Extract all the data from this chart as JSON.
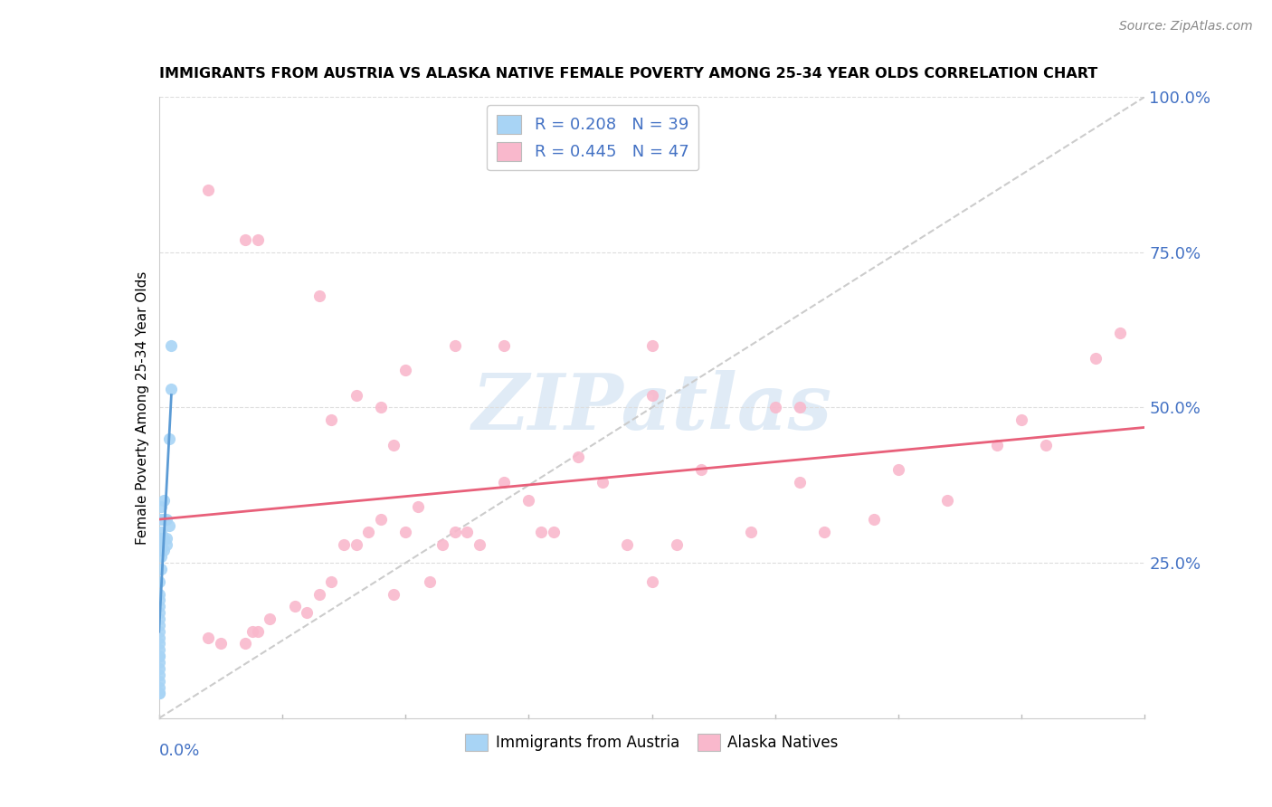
{
  "title": "IMMIGRANTS FROM AUSTRIA VS ALASKA NATIVE FEMALE POVERTY AMONG 25-34 YEAR OLDS CORRELATION CHART",
  "source": "Source: ZipAtlas.com",
  "ylabel": "Female Poverty Among 25-34 Year Olds",
  "watermark": "ZIPatlas",
  "legend1_label": "R = 0.208   N = 39",
  "legend2_label": "R = 0.445   N = 47",
  "legend_entry1": "Immigrants from Austria",
  "legend_entry2": "Alaska Natives",
  "blue_scatter_color": "#A8D4F5",
  "pink_scatter_color": "#F9B8CC",
  "blue_line_color": "#5B9BD5",
  "pink_line_color": "#E8607A",
  "ref_line_color": "#CCCCCC",
  "grid_color": "#DDDDDD",
  "blue_R": 0.208,
  "blue_N": 39,
  "pink_R": 0.445,
  "pink_N": 47,
  "xlim": [
    0.0,
    0.4
  ],
  "ylim": [
    0.0,
    1.0
  ],
  "austria_x": [
    0.0,
    0.0,
    0.0,
    0.0,
    0.0,
    0.0,
    0.0,
    0.0,
    0.0,
    0.0,
    0.0,
    0.0,
    0.0,
    0.0,
    0.0,
    0.0,
    0.0,
    0.0,
    0.0,
    0.0,
    0.001,
    0.001,
    0.001,
    0.001,
    0.001,
    0.001,
    0.001,
    0.001,
    0.002,
    0.002,
    0.002,
    0.002,
    0.003,
    0.003,
    0.003,
    0.004,
    0.004,
    0.005,
    0.005
  ],
  "austria_y": [
    0.04,
    0.04,
    0.05,
    0.06,
    0.07,
    0.08,
    0.09,
    0.1,
    0.1,
    0.11,
    0.12,
    0.13,
    0.14,
    0.15,
    0.16,
    0.17,
    0.18,
    0.19,
    0.2,
    0.22,
    0.24,
    0.26,
    0.27,
    0.28,
    0.29,
    0.3,
    0.32,
    0.34,
    0.27,
    0.29,
    0.32,
    0.35,
    0.28,
    0.29,
    0.32,
    0.31,
    0.45,
    0.53,
    0.6
  ],
  "alaska_x": [
    0.02,
    0.025,
    0.035,
    0.038,
    0.04,
    0.045,
    0.055,
    0.06,
    0.065,
    0.07,
    0.075,
    0.08,
    0.085,
    0.09,
    0.095,
    0.1,
    0.105,
    0.11,
    0.115,
    0.12,
    0.125,
    0.13,
    0.14,
    0.15,
    0.155,
    0.16,
    0.17,
    0.18,
    0.19,
    0.2,
    0.21,
    0.22,
    0.24,
    0.25,
    0.26,
    0.27,
    0.29,
    0.3,
    0.32,
    0.34,
    0.35,
    0.36,
    0.38,
    0.39,
    0.14,
    0.2,
    0.26
  ],
  "alaska_y": [
    0.13,
    0.12,
    0.12,
    0.14,
    0.14,
    0.16,
    0.18,
    0.17,
    0.2,
    0.22,
    0.28,
    0.28,
    0.3,
    0.32,
    0.2,
    0.3,
    0.34,
    0.22,
    0.28,
    0.3,
    0.3,
    0.28,
    0.38,
    0.35,
    0.3,
    0.3,
    0.42,
    0.38,
    0.28,
    0.22,
    0.28,
    0.4,
    0.3,
    0.5,
    0.38,
    0.3,
    0.32,
    0.4,
    0.35,
    0.44,
    0.48,
    0.44,
    0.58,
    0.62,
    0.6,
    0.52,
    0.5
  ],
  "alaska_x_high": [
    0.02,
    0.035,
    0.04,
    0.065,
    0.07,
    0.08,
    0.09,
    0.095,
    0.1,
    0.12,
    0.2
  ],
  "alaska_y_high": [
    0.85,
    0.77,
    0.77,
    0.68,
    0.48,
    0.52,
    0.5,
    0.44,
    0.56,
    0.6,
    0.6
  ]
}
